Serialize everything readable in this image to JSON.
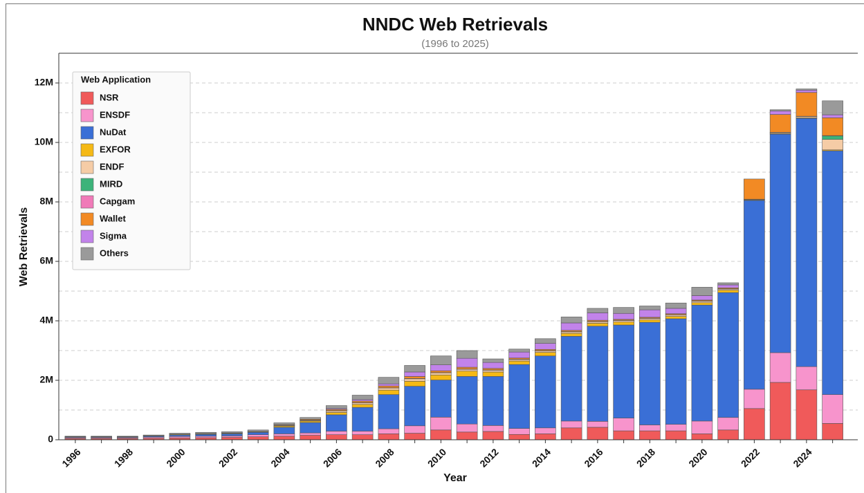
{
  "chart_data": {
    "type": "stacked_bar",
    "title": "NNDC Web Retrievals",
    "subtitle": "(1996 to 2025)",
    "x_label": "Year",
    "y_label": "Web Retrievals",
    "legend_title": "Web Application",
    "legend_position": "upper left",
    "grid": true,
    "categories": [
      "1996",
      null,
      "1998",
      null,
      "2000",
      null,
      "2002",
      null,
      "2004",
      null,
      "2006",
      null,
      "2008",
      null,
      "2010",
      null,
      "2012",
      null,
      "2014",
      null,
      "2016",
      null,
      "2018",
      null,
      "2020",
      null,
      "2022",
      null,
      "2024",
      null
    ],
    "ylim": [
      0,
      13000000
    ],
    "yticks": [
      0,
      {
        "value": 2000000,
        "label": "2M"
      },
      {
        "value": 4000000,
        "label": "4M"
      },
      {
        "value": 6000000,
        "label": "6M"
      },
      {
        "value": 8000000,
        "label": "8M"
      },
      {
        "value": 10000000,
        "label": "10M"
      },
      {
        "value": 12000000,
        "label": "12M"
      }
    ],
    "minor_grid": [
      1000000,
      3000000,
      5000000,
      7000000,
      9000000,
      11000000
    ],
    "series": [
      {
        "name": "NSR",
        "color": "#f05a5a",
        "values": [
          40000,
          40000,
          40000,
          50000,
          60000,
          70000,
          80000,
          100000,
          120000,
          150000,
          170000,
          170000,
          200000,
          220000,
          330000,
          260000,
          280000,
          180000,
          200000,
          400000,
          420000,
          300000,
          300000,
          300000,
          200000,
          330000,
          1050000,
          1930000,
          1680000,
          550000
        ]
      },
      {
        "name": "ENSDF",
        "color": "#f794cc",
        "values": [
          30000,
          30000,
          30000,
          40000,
          50000,
          50000,
          50000,
          70000,
          80000,
          80000,
          120000,
          120000,
          170000,
          250000,
          430000,
          270000,
          200000,
          200000,
          200000,
          230000,
          200000,
          430000,
          200000,
          220000,
          430000,
          420000,
          650000,
          1000000,
          780000,
          970000
        ]
      },
      {
        "name": "NuDat",
        "color": "#3a6fd6",
        "values": [
          20000,
          20000,
          20000,
          30000,
          50000,
          60000,
          70000,
          80000,
          220000,
          350000,
          550000,
          800000,
          1150000,
          1330000,
          1250000,
          1600000,
          1650000,
          2150000,
          2420000,
          2850000,
          3200000,
          3130000,
          3450000,
          3550000,
          3900000,
          4200000,
          6350000,
          7350000,
          8350000,
          8200000
        ]
      },
      {
        "name": "EXFOR",
        "color": "#f5b915",
        "values": [
          10000,
          10000,
          10000,
          10000,
          20000,
          20000,
          20000,
          20000,
          40000,
          50000,
          80000,
          100000,
          150000,
          170000,
          170000,
          180000,
          150000,
          120000,
          120000,
          100000,
          100000,
          100000,
          80000,
          80000,
          80000,
          80000,
          20000,
          20000,
          20000,
          30000
        ]
      },
      {
        "name": "ENDF",
        "color": "#f5cca6",
        "values": [
          5000,
          5000,
          5000,
          5000,
          10000,
          10000,
          10000,
          10000,
          20000,
          20000,
          50000,
          50000,
          70000,
          80000,
          70000,
          60000,
          60000,
          50000,
          50000,
          50000,
          50000,
          50000,
          50000,
          50000,
          50000,
          40000,
          10000,
          30000,
          40000,
          350000
        ]
      },
      {
        "name": "MIRD",
        "color": "#3cb37a",
        "values": [
          0,
          0,
          0,
          0,
          0,
          0,
          0,
          0,
          0,
          0,
          0,
          0,
          0,
          0,
          0,
          0,
          0,
          0,
          0,
          0,
          0,
          0,
          0,
          0,
          0,
          0,
          0,
          0,
          0,
          120000
        ]
      },
      {
        "name": "Capgam",
        "color": "#f07ab8",
        "values": [
          0,
          0,
          0,
          0,
          0,
          0,
          0,
          0,
          10000,
          10000,
          10000,
          10000,
          10000,
          10000,
          10000,
          10000,
          10000,
          10000,
          10000,
          10000,
          10000,
          10000,
          10000,
          10000,
          10000,
          10000,
          10000,
          10000,
          10000,
          10000
        ]
      },
      {
        "name": "Wallet",
        "color": "#f28a24",
        "values": [
          0,
          0,
          0,
          0,
          0,
          0,
          0,
          0,
          20000,
          30000,
          40000,
          50000,
          60000,
          70000,
          60000,
          60000,
          50000,
          40000,
          40000,
          40000,
          40000,
          30000,
          30000,
          30000,
          30000,
          30000,
          680000,
          600000,
          800000,
          600000
        ]
      },
      {
        "name": "Sigma",
        "color": "#c283ea",
        "values": [
          0,
          0,
          0,
          0,
          0,
          0,
          0,
          0,
          0,
          0,
          30000,
          50000,
          70000,
          150000,
          200000,
          300000,
          200000,
          200000,
          200000,
          250000,
          250000,
          200000,
          250000,
          180000,
          150000,
          100000,
          0,
          120000,
          80000,
          100000
        ]
      },
      {
        "name": "Others",
        "color": "#9a9a9a",
        "values": [
          15000,
          15000,
          15000,
          25000,
          30000,
          40000,
          40000,
          50000,
          60000,
          60000,
          100000,
          150000,
          220000,
          220000,
          300000,
          260000,
          120000,
          100000,
          160000,
          200000,
          150000,
          200000,
          130000,
          180000,
          280000,
          70000,
          0,
          40000,
          40000,
          470000
        ]
      }
    ]
  }
}
